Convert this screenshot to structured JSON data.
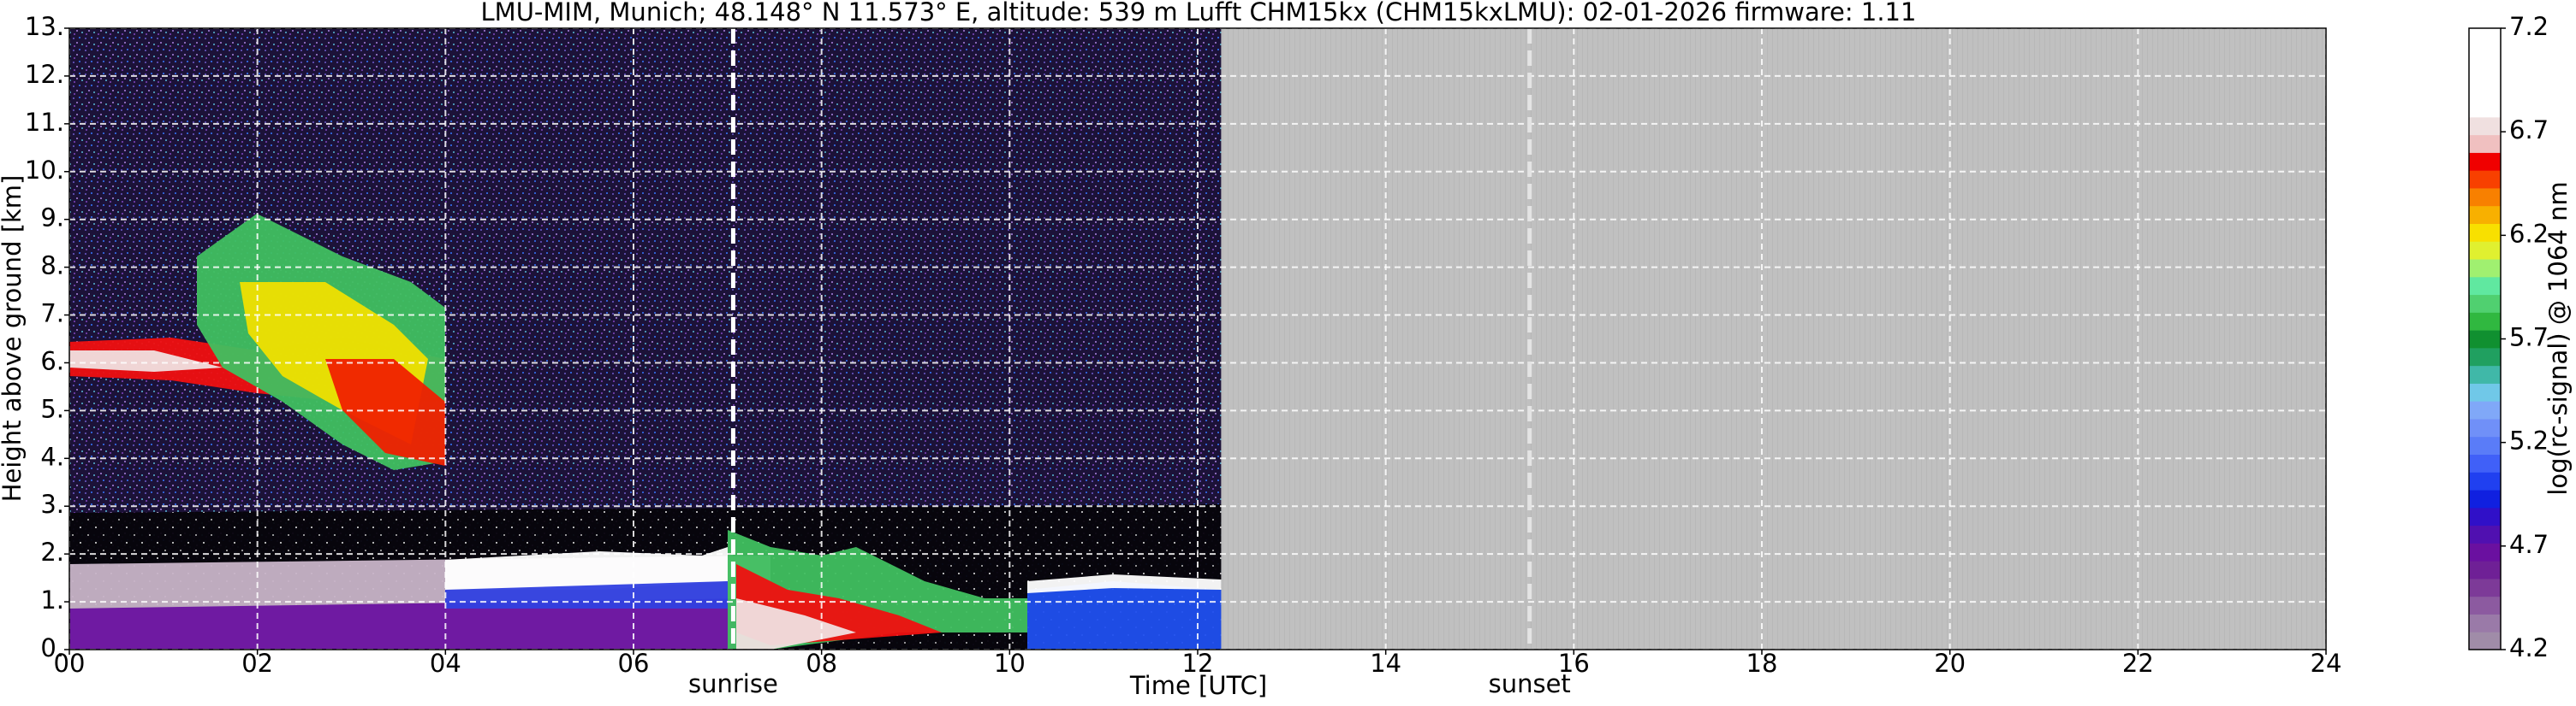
{
  "chart_data": {
    "type": "heatmap",
    "title": "LMU-MIM, Munich; 48.148° N 11.573° E, altitude: 539 m    Lufft CHM15kx (CHM15kxLMU): 02-01-2026    firmware: 1.11",
    "xlabel": "Time [UTC]",
    "ylabel": "Height above ground [km]",
    "xlim": [
      0,
      24
    ],
    "xticks": [
      {
        "value": 0,
        "label": "00"
      },
      {
        "value": 2,
        "label": "02"
      },
      {
        "value": 4,
        "label": "04"
      },
      {
        "value": 6,
        "label": "06"
      },
      {
        "value": 8,
        "label": "08"
      },
      {
        "value": 10,
        "label": "10"
      },
      {
        "value": 12,
        "label": "12"
      },
      14,
      16,
      18,
      20,
      22,
      24
    ],
    "ylim": [
      0,
      13
    ],
    "yticks": [
      {
        "value": 0,
        "label": "0."
      },
      {
        "value": 1,
        "label": "1."
      },
      {
        "value": 2,
        "label": "2."
      },
      {
        "value": 3,
        "label": "3."
      },
      {
        "value": 4,
        "label": "4."
      },
      {
        "value": 5,
        "label": "5."
      },
      {
        "value": 6,
        "label": "6."
      },
      {
        "value": 7,
        "label": "7."
      },
      {
        "value": 8,
        "label": "8."
      },
      {
        "value": 9,
        "label": "9."
      },
      {
        "value": 10,
        "label": "10."
      },
      {
        "value": 11,
        "label": "11."
      },
      {
        "value": 12,
        "label": "12."
      },
      {
        "value": 13,
        "label": "13."
      }
    ],
    "grid": true,
    "no_data_after": 12.25,
    "annotations": [
      {
        "text": "sunrise",
        "x": 7.06,
        "color": "#ffffff"
      },
      {
        "text": "sunset",
        "x": 15.53,
        "color": "#e4e4e4"
      }
    ],
    "colorbar": {
      "label": "log(rc-signal) @ 1064 nm",
      "lim": [
        4.2,
        7.2
      ],
      "ticks": [
        4.2,
        4.7,
        5.2,
        5.7,
        6.2,
        6.7,
        7.2
      ],
      "colors": [
        "#a08ca8",
        "#9a7aa8",
        "#8c5aa0",
        "#7d3a98",
        "#6f2096",
        "#6a10a0",
        "#5010b0",
        "#3010c8",
        "#1020e0",
        "#2040f0",
        "#4060f8",
        "#5a7cf8",
        "#7090f8",
        "#80a8f8",
        "#70c8e8",
        "#40b8a8",
        "#20a060",
        "#109030",
        "#30b840",
        "#50d070",
        "#60e8a0",
        "#a0f070",
        "#e0f030",
        "#f8e000",
        "#f8b000",
        "#f88000",
        "#f84000",
        "#f00000",
        "#f0c0c0",
        "#f0e0e0",
        "#ffffff",
        "#ffffff",
        "#ffffff",
        "#ffffff",
        "#ffffff"
      ]
    }
  }
}
